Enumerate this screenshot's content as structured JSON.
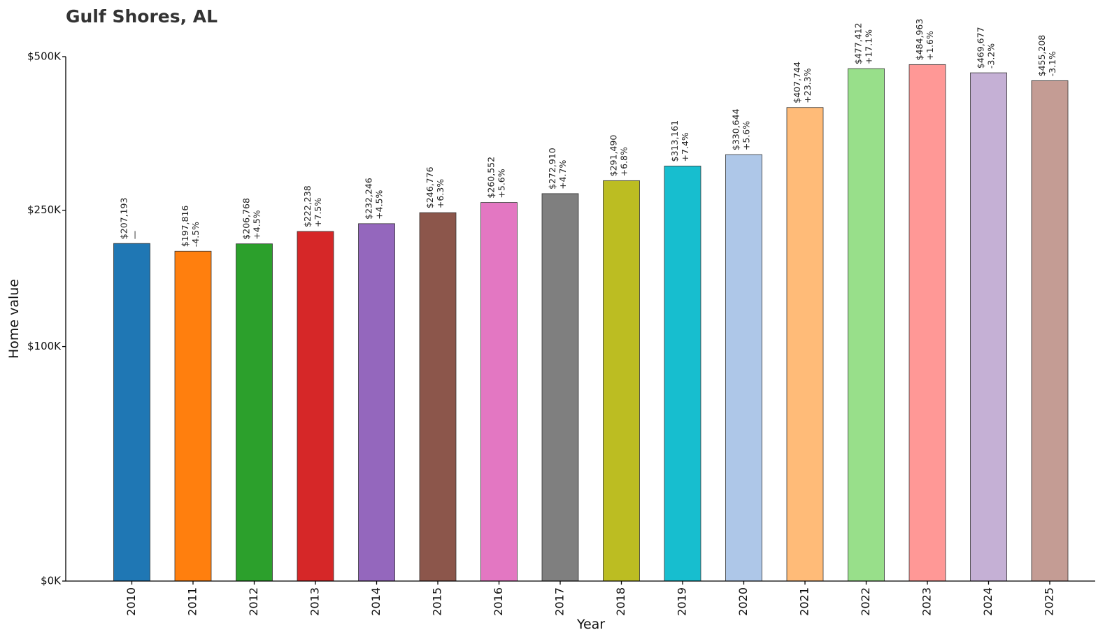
{
  "chart_data": {
    "type": "bar",
    "title": "Gulf Shores, AL",
    "xlabel": "Year",
    "ylabel": "Home value",
    "ylim": [
      0,
      500000
    ],
    "y_scale": "sqrt",
    "y_ticks": [
      {
        "value": 0,
        "label": "$0K"
      },
      {
        "value": 100000,
        "label": "$100K"
      },
      {
        "value": 250000,
        "label": "$250K"
      },
      {
        "value": 500000,
        "label": "$500K"
      }
    ],
    "grid": false,
    "categories": [
      "2010",
      "2011",
      "2012",
      "2013",
      "2014",
      "2015",
      "2016",
      "2017",
      "2018",
      "2019",
      "2020",
      "2021",
      "2022",
      "2023",
      "2024",
      "2025"
    ],
    "values": [
      207193,
      197816,
      206768,
      222238,
      232246,
      246776,
      260552,
      272910,
      291490,
      313161,
      330644,
      407744,
      477412,
      484963,
      469677,
      455208
    ],
    "value_labels": [
      "$207,193",
      "$197,816",
      "$206,768",
      "$222,238",
      "$232,246",
      "$246,776",
      "$260,552",
      "$272,910",
      "$291,490",
      "$313,161",
      "$330,644",
      "$407,744",
      "$477,412",
      "$484,963",
      "$469,677",
      "$455,208"
    ],
    "change_labels": [
      "—",
      "-4.5%",
      "+4.5%",
      "+7.5%",
      "+4.5%",
      "+6.3%",
      "+5.6%",
      "+4.7%",
      "+6.8%",
      "+7.4%",
      "+5.6%",
      "+23.3%",
      "+17.1%",
      "+1.6%",
      "-3.2%",
      "-3.1%"
    ],
    "colors": [
      "#1f77b4",
      "#ff7f0e",
      "#2ca02c",
      "#d62728",
      "#9467bd",
      "#8c564b",
      "#e377c2",
      "#7f7f7f",
      "#bcbd22",
      "#17becf",
      "#aec7e8",
      "#ffbb78",
      "#98df8a",
      "#ff9896",
      "#c5b0d5",
      "#c49c94"
    ]
  }
}
